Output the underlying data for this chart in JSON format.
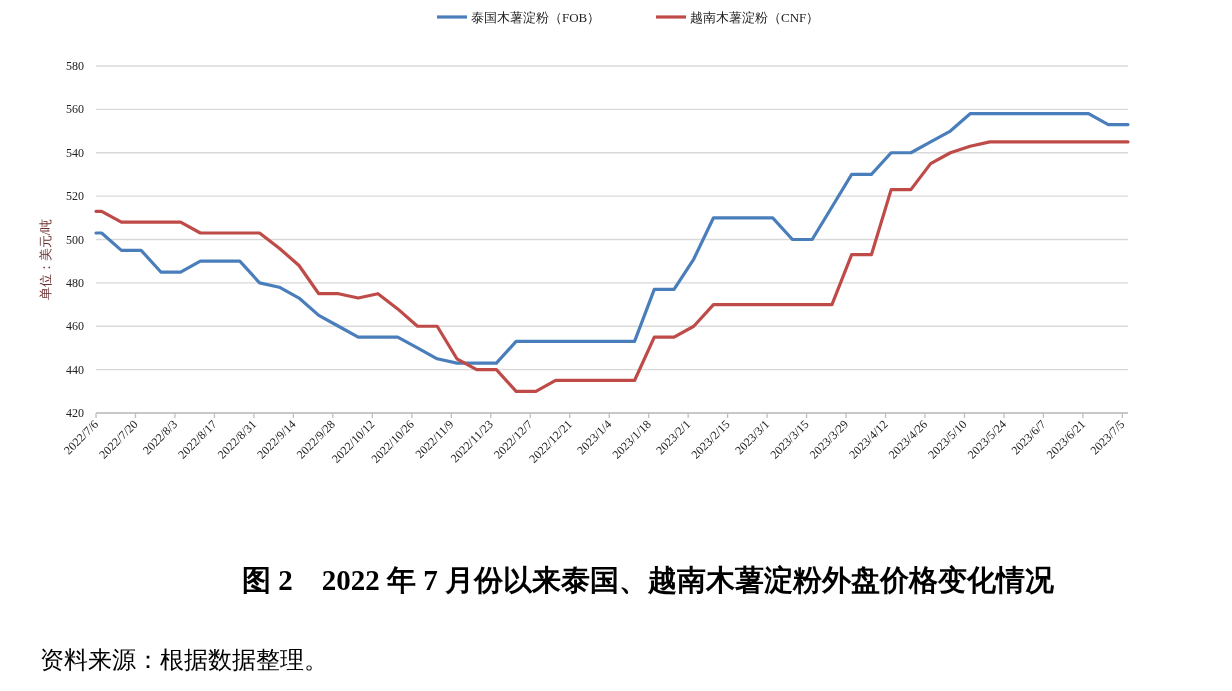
{
  "chart_data": {
    "type": "line",
    "title": "图 2　2022 年 7 月份以来泰国、越南木薯淀粉外盘价格变化情况",
    "annotations": [
      "资料来源：根据数据整理。"
    ],
    "ylabel": "单位：美元/吨",
    "x": [
      "2022-07-06",
      "2022-07-08",
      "2022-07-15",
      "2022-07-22",
      "2022-07-29",
      "2022-08-05",
      "2022-08-12",
      "2022-08-19",
      "2022-08-26",
      "2022-09-02",
      "2022-09-09",
      "2022-09-16",
      "2022-09-23",
      "2022-09-30",
      "2022-10-07",
      "2022-10-14",
      "2022-10-21",
      "2022-10-28",
      "2022-11-04",
      "2022-11-11",
      "2022-11-18",
      "2022-11-25",
      "2022-12-02",
      "2022-12-09",
      "2022-12-16",
      "2022-12-23",
      "2022-12-30",
      "2023-01-06",
      "2023-01-13",
      "2023-01-20",
      "2023-01-27",
      "2023-02-03",
      "2023-02-10",
      "2023-02-17",
      "2023-02-24",
      "2023-03-03",
      "2023-03-10",
      "2023-03-17",
      "2023-03-24",
      "2023-03-31",
      "2023-04-07",
      "2023-04-14",
      "2023-04-21",
      "2023-04-28",
      "2023-05-05",
      "2023-05-12",
      "2023-05-19",
      "2023-05-26",
      "2023-06-02",
      "2023-06-09",
      "2023-06-16",
      "2023-06-23",
      "2023-06-30",
      "2023-07-07"
    ],
    "series": [
      {
        "name": "泰国木薯淀粉（FOB）",
        "color": "#4a7ebb",
        "values": [
          503,
          503,
          495,
          495,
          485,
          485,
          490,
          490,
          490,
          480,
          478,
          473,
          465,
          460,
          455,
          455,
          455,
          450,
          445,
          443,
          443,
          443,
          453,
          453,
          453,
          453,
          453,
          453,
          453,
          477,
          477,
          491,
          510,
          510,
          510,
          510,
          500,
          500,
          515,
          530,
          530,
          540,
          540,
          545,
          550,
          558,
          558,
          558,
          558,
          558,
          558,
          558,
          553,
          553
        ]
      },
      {
        "name": "越南木薯淀粉（CNF）",
        "color": "#be4b48",
        "values": [
          513,
          513,
          508,
          508,
          508,
          508,
          503,
          503,
          503,
          503,
          496,
          488,
          475,
          475,
          473,
          475,
          468,
          460,
          460,
          445,
          440,
          440,
          430,
          430,
          435,
          435,
          435,
          435,
          435,
          455,
          455,
          460,
          470,
          470,
          470,
          470,
          470,
          470,
          470,
          493,
          493,
          523,
          523,
          535,
          540,
          543,
          545,
          545,
          545,
          545,
          545,
          545,
          545,
          545
        ]
      }
    ],
    "xlim": [
      "2022-07-06",
      "2023-07-07"
    ],
    "xticks": [
      {
        "value": "2022-07-06",
        "label": "2022/7/6"
      },
      {
        "value": "2022-07-20",
        "label": "2022/7/20"
      },
      {
        "value": "2022-08-03",
        "label": "2022/8/3"
      },
      {
        "value": "2022-08-17",
        "label": "2022/8/17"
      },
      {
        "value": "2022-08-31",
        "label": "2022/8/31"
      },
      {
        "value": "2022-09-14",
        "label": "2022/9/14"
      },
      {
        "value": "2022-09-28",
        "label": "2022/9/28"
      },
      {
        "value": "2022-10-12",
        "label": "2022/10/12"
      },
      {
        "value": "2022-10-26",
        "label": "2022/10/26"
      },
      {
        "value": "2022-11-09",
        "label": "2022/11/9"
      },
      {
        "value": "2022-11-23",
        "label": "2022/11/23"
      },
      {
        "value": "2022-12-07",
        "label": "2022/12/7"
      },
      {
        "value": "2022-12-21",
        "label": "2022/12/21"
      },
      {
        "value": "2023-01-04",
        "label": "2023/1/4"
      },
      {
        "value": "2023-01-18",
        "label": "2023/1/18"
      },
      {
        "value": "2023-02-01",
        "label": "2023/2/1"
      },
      {
        "value": "2023-02-15",
        "label": "2023/2/15"
      },
      {
        "value": "2023-03-01",
        "label": "2023/3/1"
      },
      {
        "value": "2023-03-15",
        "label": "2023/3/15"
      },
      {
        "value": "2023-03-29",
        "label": "2023/3/29"
      },
      {
        "value": "2023-04-12",
        "label": "2023/4/12"
      },
      {
        "value": "2023-04-26",
        "label": "2023/4/26"
      },
      {
        "value": "2023-05-10",
        "label": "2023/5/10"
      },
      {
        "value": "2023-05-24",
        "label": "2023/5/24"
      },
      {
        "value": "2023-06-07",
        "label": "2023/6/7"
      },
      {
        "value": "2023-06-21",
        "label": "2023/6/21"
      },
      {
        "value": "2023-07-05",
        "label": "2023/7/5"
      }
    ],
    "ylim": [
      420,
      580
    ],
    "yticks": [
      420,
      440,
      460,
      480,
      500,
      520,
      540,
      560,
      580
    ],
    "grid": "y",
    "legend": "top"
  }
}
